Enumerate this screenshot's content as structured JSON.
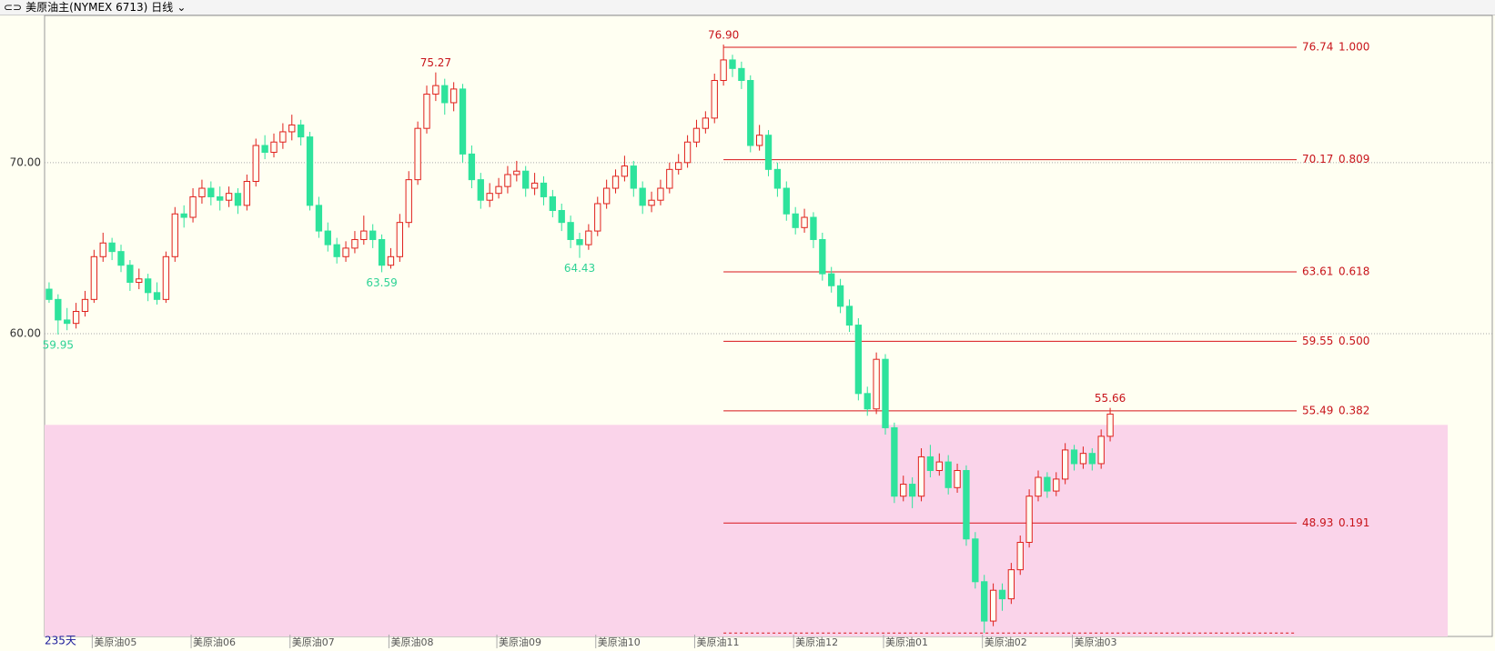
{
  "header": {
    "title": "美原油主(NYMEX 6713)",
    "period": "日线"
  },
  "chart_data": {
    "type": "candlestick",
    "ylim": [
      42.3,
      78.6
    ],
    "yticks": [
      {
        "value": 60,
        "label": "60.00"
      },
      {
        "value": 70,
        "label": "70.00"
      }
    ],
    "grid": true,
    "up_color": "#e0201c",
    "down_color": "#2ee39c",
    "shade_color": "#fad4ea",
    "shade_top": 54.67,
    "day_count": "235天",
    "xlabels": [
      {
        "index": 5,
        "label": "美原油05"
      },
      {
        "index": 16,
        "label": "美原油06"
      },
      {
        "index": 27,
        "label": "美原油07"
      },
      {
        "index": 38,
        "label": "美原油08"
      },
      {
        "index": 50,
        "label": "美原油09"
      },
      {
        "index": 61,
        "label": "美原油10"
      },
      {
        "index": 72,
        "label": "美原油11"
      },
      {
        "index": 83,
        "label": "美原油12"
      },
      {
        "index": 93,
        "label": "美原油01"
      },
      {
        "index": 104,
        "label": "美原油02"
      },
      {
        "index": 114,
        "label": "美原油03"
      }
    ],
    "annotations": [
      {
        "index": 1,
        "value": 59.95,
        "label": "59.95",
        "side": "low"
      },
      {
        "index": 37,
        "value": 63.59,
        "label": "63.59",
        "side": "low"
      },
      {
        "index": 43,
        "value": 75.27,
        "label": "75.27",
        "side": "high"
      },
      {
        "index": 59,
        "value": 64.43,
        "label": "64.43",
        "side": "low"
      },
      {
        "index": 75,
        "value": 76.9,
        "label": "76.90",
        "side": "high"
      },
      {
        "index": 118,
        "value": 55.66,
        "label": "55.66",
        "side": "high"
      }
    ],
    "fib_start": 75,
    "fib_base": 42.5,
    "fib_levels": [
      {
        "price": 76.74,
        "ratio": {
          "value": 1,
          "label": "1.000"
        }
      },
      {
        "price": 70.17,
        "ratio": {
          "value": 0.809,
          "label": "0.809"
        }
      },
      {
        "price": 63.61,
        "ratio": {
          "value": 0.618,
          "label": "0.618"
        }
      },
      {
        "price": 59.55,
        "ratio": {
          "value": 0.5,
          "label": "0.500"
        }
      },
      {
        "price": 55.49,
        "ratio": {
          "value": 0.382,
          "label": "0.382"
        }
      },
      {
        "price": 48.93,
        "ratio": {
          "value": 0.191,
          "label": "0.191"
        }
      }
    ],
    "candles": [
      [
        62.6,
        63.0,
        61.8,
        62.0
      ],
      [
        62.0,
        62.3,
        59.95,
        60.8
      ],
      [
        60.8,
        61.5,
        60.2,
        60.6
      ],
      [
        60.6,
        61.8,
        60.3,
        61.3
      ],
      [
        61.3,
        62.5,
        61.0,
        62.0
      ],
      [
        62.0,
        64.9,
        61.8,
        64.5
      ],
      [
        64.5,
        65.9,
        64.2,
        65.3
      ],
      [
        65.3,
        65.6,
        64.3,
        64.8
      ],
      [
        64.8,
        65.2,
        63.6,
        64.0
      ],
      [
        64.0,
        64.3,
        62.5,
        63.0
      ],
      [
        63.0,
        63.8,
        62.6,
        63.2
      ],
      [
        63.2,
        63.5,
        61.9,
        62.4
      ],
      [
        62.4,
        63.0,
        61.7,
        62.0
      ],
      [
        62.0,
        64.8,
        61.8,
        64.5
      ],
      [
        64.5,
        67.4,
        64.2,
        67.0
      ],
      [
        67.0,
        67.5,
        66.2,
        66.8
      ],
      [
        66.8,
        68.5,
        66.5,
        68.0
      ],
      [
        68.0,
        69.0,
        67.6,
        68.5
      ],
      [
        68.5,
        68.9,
        67.5,
        68.0
      ],
      [
        68.0,
        68.6,
        67.2,
        67.8
      ],
      [
        67.8,
        68.6,
        67.4,
        68.2
      ],
      [
        68.2,
        68.5,
        67.0,
        67.5
      ],
      [
        67.5,
        69.3,
        67.2,
        68.9
      ],
      [
        68.9,
        71.4,
        68.6,
        71.0
      ],
      [
        71.0,
        71.6,
        70.2,
        70.6
      ],
      [
        70.6,
        71.7,
        70.3,
        71.2
      ],
      [
        71.2,
        72.3,
        70.8,
        71.8
      ],
      [
        71.8,
        72.8,
        71.3,
        72.2
      ],
      [
        72.2,
        72.5,
        71.0,
        71.5
      ],
      [
        71.5,
        71.8,
        67.2,
        67.5
      ],
      [
        67.5,
        68.0,
        65.6,
        66.0
      ],
      [
        66.0,
        66.5,
        64.8,
        65.2
      ],
      [
        65.2,
        65.6,
        64.1,
        64.5
      ],
      [
        64.5,
        65.4,
        64.2,
        65.0
      ],
      [
        65.0,
        66.0,
        64.7,
        65.5
      ],
      [
        65.5,
        66.9,
        65.2,
        66.0
      ],
      [
        66.0,
        66.4,
        65.0,
        65.5
      ],
      [
        65.5,
        65.8,
        63.59,
        64.0
      ],
      [
        64.0,
        65.0,
        63.8,
        64.5
      ],
      [
        64.5,
        67.0,
        64.2,
        66.5
      ],
      [
        66.5,
        69.5,
        66.2,
        69.0
      ],
      [
        69.0,
        72.4,
        68.7,
        72.0
      ],
      [
        72.0,
        74.5,
        71.7,
        74.0
      ],
      [
        74.0,
        75.27,
        73.6,
        74.5
      ],
      [
        74.5,
        74.9,
        72.8,
        73.5
      ],
      [
        73.5,
        74.7,
        73.0,
        74.3
      ],
      [
        74.3,
        74.6,
        70.0,
        70.5
      ],
      [
        70.5,
        71.0,
        68.5,
        69.0
      ],
      [
        69.0,
        69.4,
        67.3,
        67.8
      ],
      [
        67.8,
        68.8,
        67.4,
        68.2
      ],
      [
        68.2,
        69.1,
        67.9,
        68.6
      ],
      [
        68.6,
        69.8,
        68.2,
        69.3
      ],
      [
        69.3,
        70.1,
        68.9,
        69.5
      ],
      [
        69.5,
        69.8,
        68.0,
        68.5
      ],
      [
        68.5,
        69.4,
        68.1,
        68.8
      ],
      [
        68.8,
        69.2,
        67.5,
        68.0
      ],
      [
        68.0,
        68.4,
        66.8,
        67.2
      ],
      [
        67.2,
        67.6,
        66.0,
        66.5
      ],
      [
        66.5,
        66.9,
        65.0,
        65.5
      ],
      [
        65.5,
        65.9,
        64.43,
        65.2
      ],
      [
        65.2,
        66.4,
        64.9,
        66.0
      ],
      [
        66.0,
        68.0,
        65.7,
        67.6
      ],
      [
        67.6,
        69.0,
        67.3,
        68.5
      ],
      [
        68.5,
        69.6,
        68.2,
        69.2
      ],
      [
        69.2,
        70.4,
        68.9,
        69.8
      ],
      [
        69.8,
        70.1,
        68.0,
        68.5
      ],
      [
        68.5,
        68.9,
        67.0,
        67.5
      ],
      [
        67.5,
        68.3,
        67.1,
        67.8
      ],
      [
        67.8,
        69.0,
        67.5,
        68.5
      ],
      [
        68.5,
        70.0,
        68.2,
        69.6
      ],
      [
        69.6,
        70.5,
        69.3,
        70.0
      ],
      [
        70.0,
        71.6,
        69.7,
        71.2
      ],
      [
        71.2,
        72.5,
        70.9,
        72.0
      ],
      [
        72.0,
        73.0,
        71.7,
        72.6
      ],
      [
        72.6,
        75.2,
        72.3,
        74.8
      ],
      [
        74.8,
        76.9,
        74.5,
        76.0
      ],
      [
        76.0,
        76.3,
        75.0,
        75.5
      ],
      [
        75.5,
        75.9,
        74.3,
        74.8
      ],
      [
        74.8,
        75.1,
        70.6,
        71.0
      ],
      [
        71.0,
        72.2,
        70.7,
        71.6
      ],
      [
        71.6,
        71.9,
        69.2,
        69.6
      ],
      [
        69.6,
        70.0,
        68.0,
        68.5
      ],
      [
        68.5,
        68.9,
        66.6,
        67.0
      ],
      [
        67.0,
        67.4,
        65.8,
        66.2
      ],
      [
        66.2,
        67.3,
        65.9,
        66.8
      ],
      [
        66.8,
        67.1,
        65.0,
        65.5
      ],
      [
        65.5,
        65.9,
        63.1,
        63.5
      ],
      [
        63.5,
        63.9,
        62.4,
        62.8
      ],
      [
        62.8,
        63.2,
        61.2,
        61.6
      ],
      [
        61.6,
        62.0,
        60.1,
        60.5
      ],
      [
        60.5,
        60.9,
        56.1,
        56.5
      ],
      [
        56.5,
        56.9,
        55.2,
        55.6
      ],
      [
        55.6,
        58.9,
        55.3,
        58.5
      ],
      [
        58.5,
        58.8,
        54.1,
        54.5
      ],
      [
        54.5,
        54.8,
        50.1,
        50.5
      ],
      [
        50.5,
        51.7,
        50.2,
        51.2
      ],
      [
        51.2,
        51.6,
        49.8,
        50.5
      ],
      [
        50.5,
        53.3,
        50.2,
        52.8
      ],
      [
        52.8,
        53.5,
        51.6,
        52.0
      ],
      [
        52.0,
        53.0,
        51.7,
        52.5
      ],
      [
        52.5,
        52.9,
        50.6,
        51.0
      ],
      [
        51.0,
        52.4,
        50.7,
        52.0
      ],
      [
        52.0,
        52.3,
        47.6,
        48.0
      ],
      [
        48.0,
        48.4,
        45.1,
        45.5
      ],
      [
        45.5,
        45.9,
        42.5,
        43.2
      ],
      [
        43.2,
        45.4,
        42.9,
        45.0
      ],
      [
        45.0,
        45.4,
        43.8,
        44.5
      ],
      [
        44.5,
        46.6,
        44.2,
        46.2
      ],
      [
        46.2,
        48.2,
        45.9,
        47.8
      ],
      [
        47.8,
        50.9,
        47.5,
        50.5
      ],
      [
        50.5,
        52.0,
        50.2,
        51.6
      ],
      [
        51.6,
        51.9,
        50.4,
        50.8
      ],
      [
        50.8,
        51.9,
        50.5,
        51.5
      ],
      [
        51.5,
        53.6,
        51.2,
        53.2
      ],
      [
        53.2,
        53.5,
        52.0,
        52.4
      ],
      [
        52.4,
        53.4,
        52.1,
        53.0
      ],
      [
        53.0,
        53.3,
        52.0,
        52.4
      ],
      [
        52.4,
        54.4,
        52.1,
        54.0
      ],
      [
        54.0,
        55.66,
        53.7,
        55.3
      ]
    ]
  }
}
